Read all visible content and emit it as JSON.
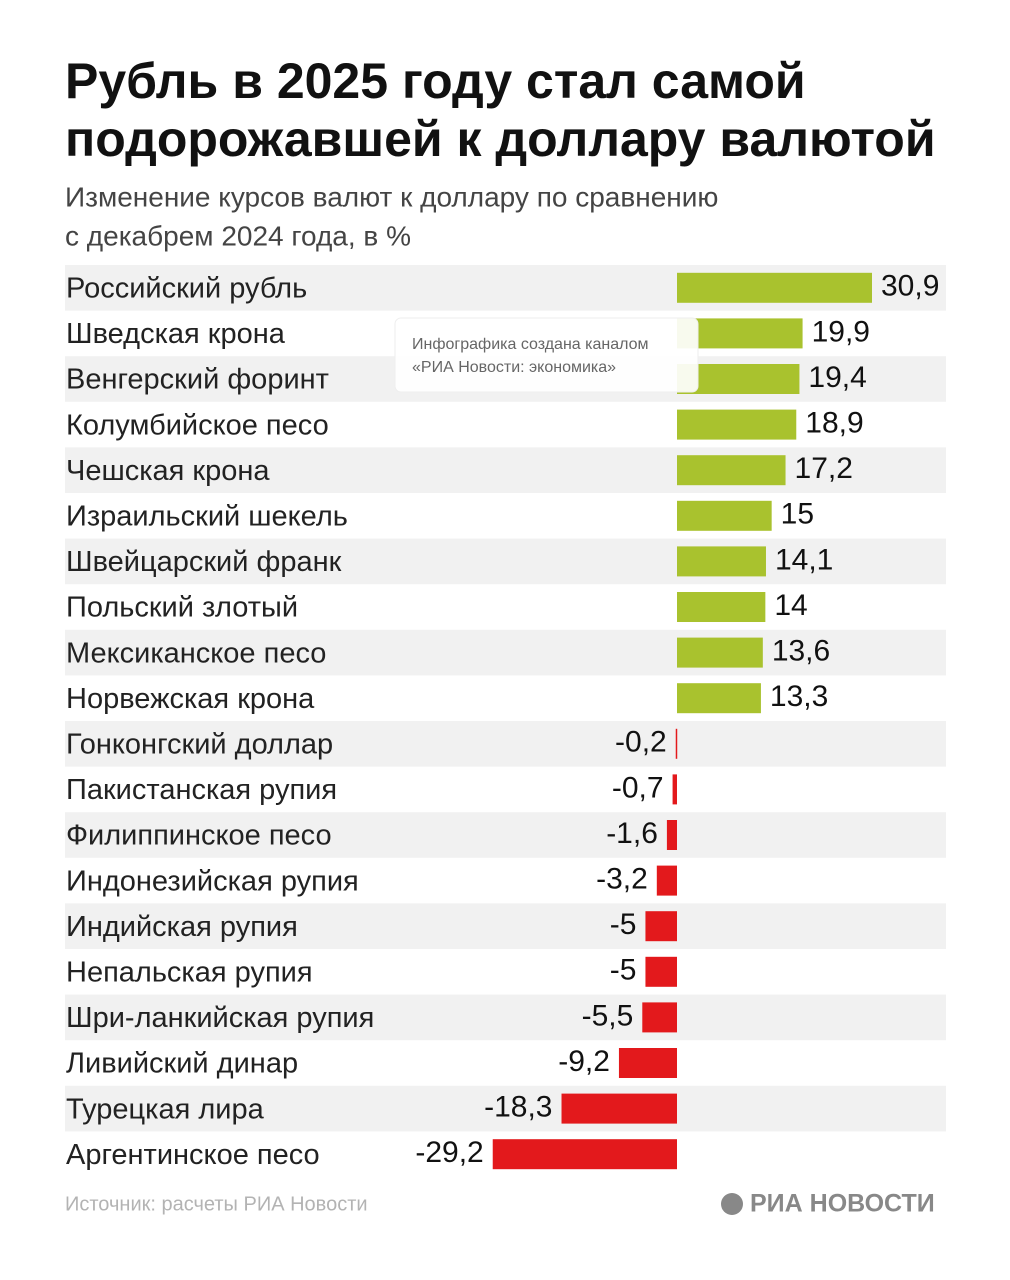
{
  "chart_data": {
    "type": "barh",
    "title": [
      "Рубль в 2025 году стал самой",
      "подорожавшей к доллару валютой"
    ],
    "subtitle": [
      "Изменение курсов валют к доллару по сравнению",
      "с декабрем 2024 года, в %"
    ],
    "categories": [
      "Российский рубль",
      "Шведская крона",
      "Венгерский форинт",
      "Колумбийское песо",
      "Чешская крона",
      "Израильский шекель",
      "Швейцарский франк",
      "Польский злотый",
      "Мексиканское песо",
      "Норвежская крона",
      "Гонконгский доллар",
      "Пакистанская рупия",
      "Филиппинское песо",
      "Индонезийская рупия",
      "Индийская рупия",
      "Непальская рупия",
      "Шри-ланкийская рупия",
      "Ливийский динар",
      "Турецкая лира",
      "Аргентинское песо"
    ],
    "values": [
      30.9,
      19.9,
      19.4,
      18.9,
      17.2,
      15,
      14.1,
      14,
      13.6,
      13.3,
      -0.2,
      -0.7,
      -1.6,
      -3.2,
      -5,
      -5,
      -5.5,
      -9.2,
      -18.3,
      -29.2
    ],
    "value_labels": [
      "30,9",
      "19,9",
      "19,4",
      "18,9",
      "17,2",
      "15",
      "14,1",
      "14",
      "13,6",
      "13,3",
      "-0,2",
      "-0,7",
      "-1,6",
      "-3,2",
      "-5",
      "-5",
      "-5,5",
      "-9,2",
      "-18,3",
      "-29,2"
    ],
    "positive_color": "#a9c22e",
    "negative_color": "#e3191c",
    "source": "Источник: расчеты РИА Новости",
    "logo": "РИА НОВОСТИ",
    "watermark": [
      "Инфографика создана каналом",
      "«РИА Новости: экономика»"
    ]
  }
}
